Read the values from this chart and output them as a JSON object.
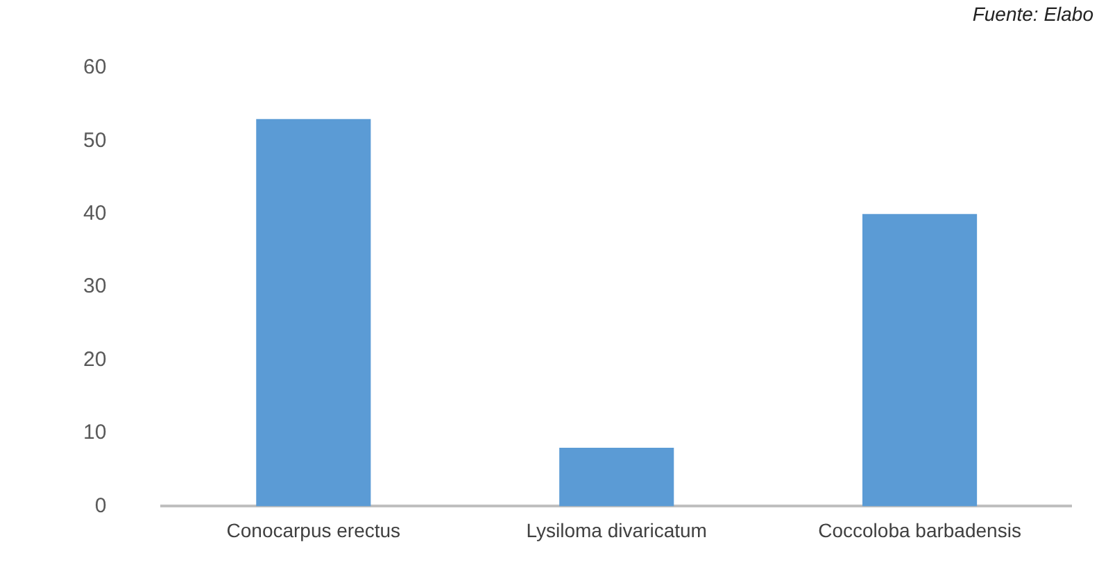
{
  "chart_data": {
    "type": "bar",
    "categories": [
      "Conocarpus erectus",
      "Lysiloma divaricatum",
      "Coccoloba barbadensis"
    ],
    "values": [
      53,
      8,
      40
    ],
    "color": "#5b9bd5",
    "ylim": [
      0,
      60
    ],
    "yticks": [
      0,
      10,
      20,
      30,
      40,
      50,
      60
    ],
    "grid": false,
    "annotations": [
      "Fuente: Elabo"
    ]
  }
}
